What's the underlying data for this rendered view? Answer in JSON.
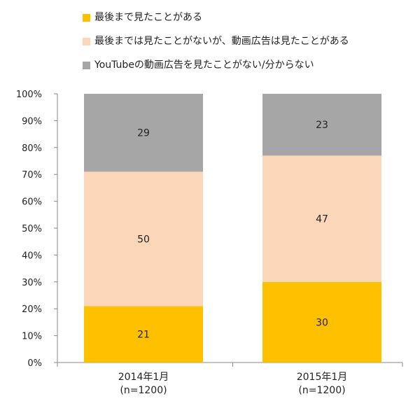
{
  "chart_data": {
    "type": "bar",
    "stacked": true,
    "categories": [
      {
        "label": "2014年1月",
        "sublabel": "(n=1200)"
      },
      {
        "label": "2015年1月",
        "sublabel": "(n=1200)"
      }
    ],
    "series": [
      {
        "name": "最後まで見たことがある",
        "color": "#ffc000",
        "values": [
          21,
          30
        ]
      },
      {
        "name": "最後までは見たことがないが、動画広告は見たことがある",
        "color": "#fcd6b8",
        "values": [
          50,
          47
        ]
      },
      {
        "name": "YouTubeの動画広告を見たことがない/分からない",
        "color": "#a6a6a6",
        "values": [
          29,
          23
        ]
      }
    ],
    "yticks": [
      "0%",
      "10%",
      "20%",
      "30%",
      "40%",
      "50%",
      "60%",
      "70%",
      "80%",
      "90%",
      "100%"
    ],
    "ylim": [
      0,
      100
    ],
    "legend_position": "top",
    "grid": false
  }
}
